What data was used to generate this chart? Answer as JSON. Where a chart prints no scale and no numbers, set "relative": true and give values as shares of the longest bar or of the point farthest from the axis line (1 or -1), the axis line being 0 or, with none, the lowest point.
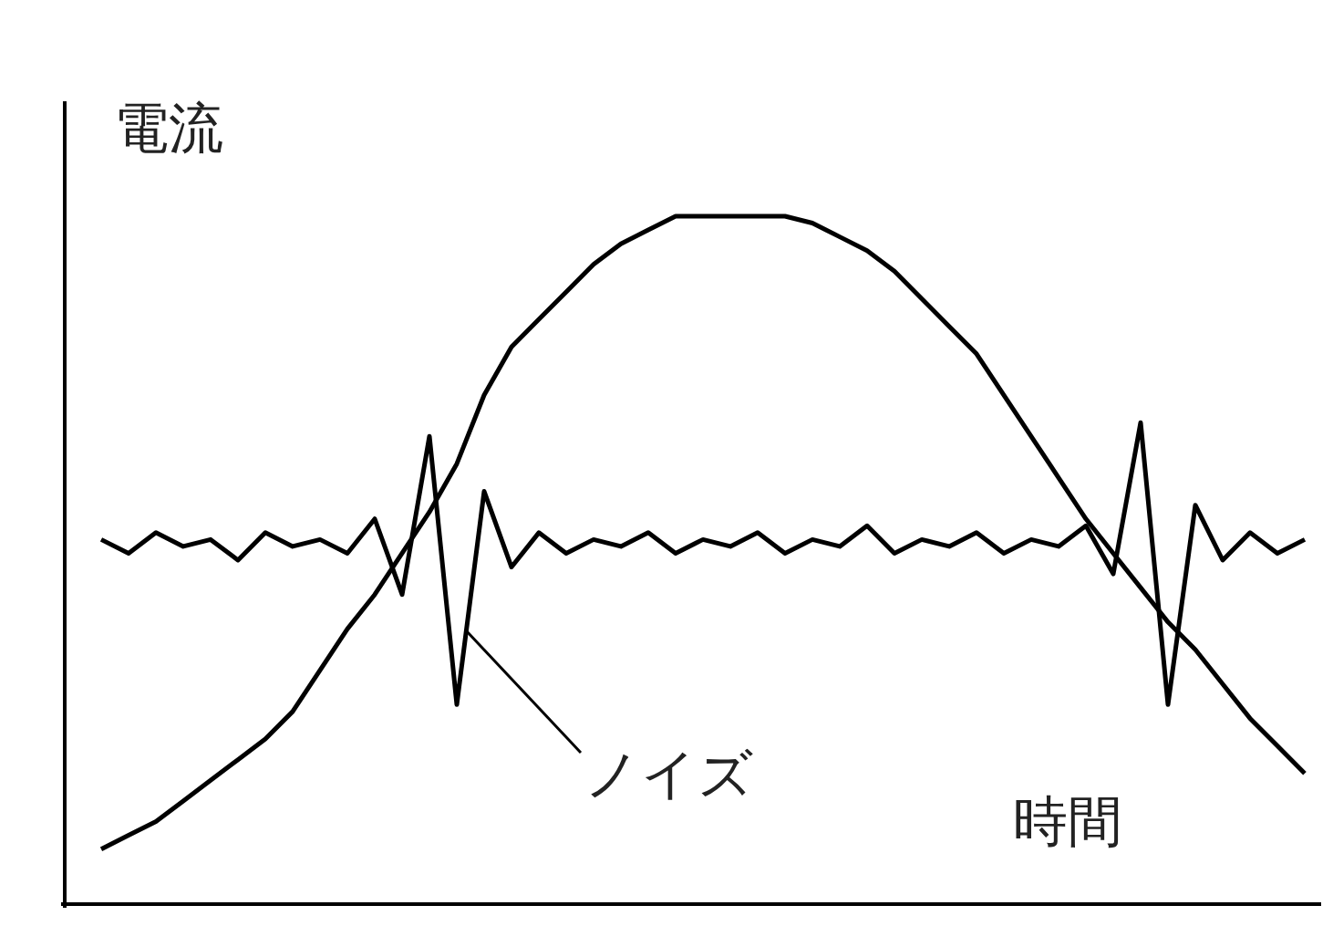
{
  "chart_data": {
    "type": "line",
    "relative": true,
    "xlabel": "時間",
    "ylabel": "電流",
    "annotations": [
      "ノイズ"
    ],
    "categories": [
      null,
      null,
      null,
      null,
      null,
      null,
      null,
      null,
      null,
      null,
      null,
      null,
      null,
      null,
      null,
      null,
      null,
      null,
      null,
      null,
      null,
      null,
      null,
      null,
      null,
      null,
      null,
      null,
      null,
      null,
      null,
      null,
      null,
      null,
      null,
      null,
      null,
      null,
      null,
      null,
      null,
      null,
      null,
      null,
      null
    ],
    "series": [
      {
        "color": "#000000",
        "values": [
          0.08,
          0.1,
          0.12,
          0.15,
          0.18,
          0.21,
          0.24,
          0.28,
          0.34,
          0.4,
          0.45,
          0.51,
          0.57,
          0.64,
          0.74,
          0.81,
          0.85,
          0.89,
          0.93,
          0.96,
          0.98,
          1,
          1,
          1,
          1,
          1,
          0.99,
          0.97,
          0.95,
          0.92,
          0.88,
          0.84,
          0.8,
          0.74,
          0.68,
          0.62,
          0.56,
          0.51,
          0.46,
          0.41,
          0.37,
          0.32,
          0.27,
          0.23,
          0.19
        ]
      },
      {
        "color": "#000000",
        "values": [
          0.53,
          0.51,
          0.54,
          0.52,
          0.53,
          0.5,
          0.54,
          0.52,
          0.53,
          0.51,
          0.56,
          0.45,
          0.68,
          0.29,
          0.6,
          0.49,
          0.54,
          0.51,
          0.53,
          0.52,
          0.54,
          0.51,
          0.53,
          0.52,
          0.54,
          0.51,
          0.53,
          0.52,
          0.55,
          0.51,
          0.53,
          0.52,
          0.54,
          0.51,
          0.53,
          0.52,
          0.55,
          0.48,
          0.7,
          0.29,
          0.58,
          0.5,
          0.54,
          0.51,
          0.53
        ]
      }
    ]
  }
}
